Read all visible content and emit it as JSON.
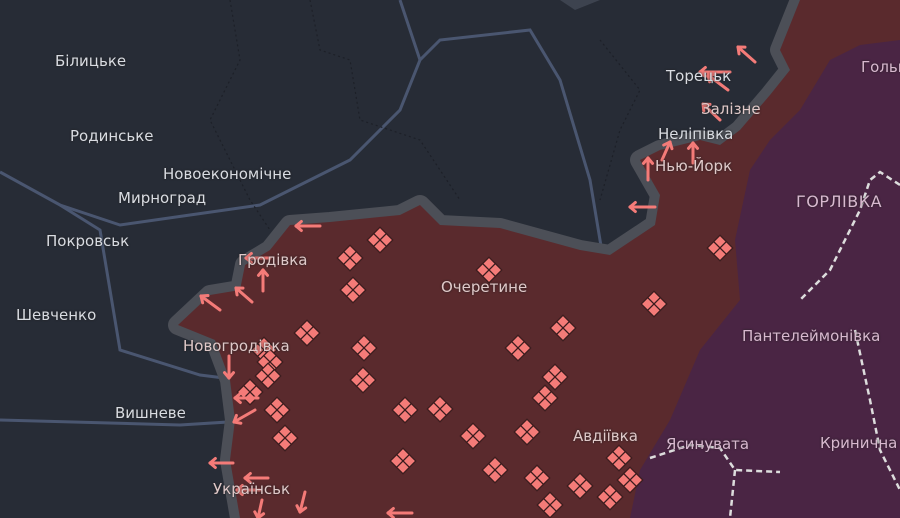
{
  "map": {
    "colors": {
      "background": "#272c36",
      "occupied": "#5a2a2d",
      "buffer": "#4c4f57",
      "occupied_before_2022": "#4a2544",
      "marker": "#f47b78",
      "road": "#4a5670"
    },
    "places": {
      "bilytske": "Білицьке",
      "rodynske": "Родинське",
      "novoekonomichne": "Новоекономічне",
      "myrnohrad": "Мирноград",
      "pokrovsk": "Покровськ",
      "shevchenko": "Шевченко",
      "novohrodivka": "Новогродівка",
      "vyshneve": "Вишневе",
      "ukrainsk": "Українськ",
      "hrodivka": "Гродівка",
      "ocheretyne": "Очеретине",
      "avdiivka": "Авдіївка",
      "toretsk": "Торецьк",
      "zalizne": "Залізне",
      "nelipivka": "Неліпівка",
      "niu_york": "Нью-Йорк",
      "horlivka": "ГОРЛІВКА",
      "holmivskyi": "Гольм",
      "panteleimonivka": "Пантелеймонівка",
      "yasynuvata": "Ясинувата",
      "krynychna": "Кринична"
    },
    "legend_icons": {
      "attack_direction": "arrow-icon",
      "fighting_area": "diamond-grid-icon"
    }
  }
}
